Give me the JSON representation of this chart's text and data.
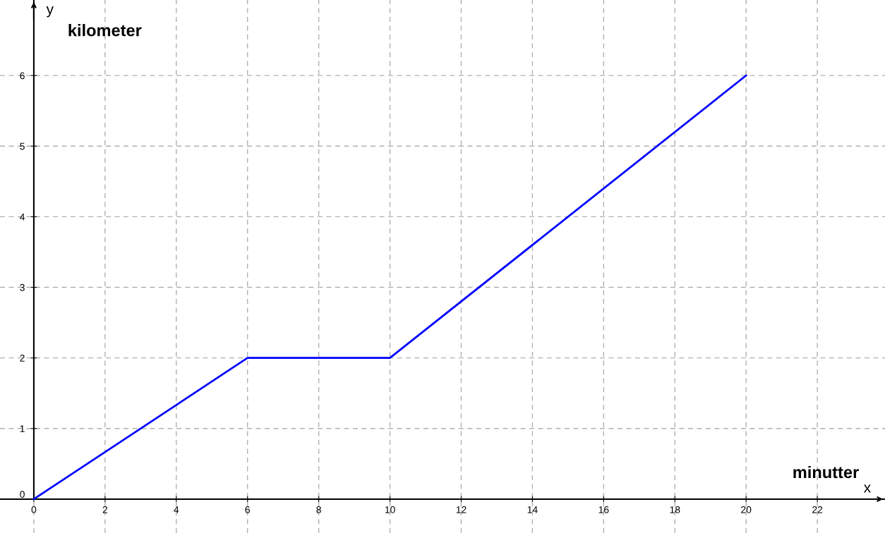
{
  "chart_data": {
    "type": "line",
    "xlabel": "minutter",
    "ylabel": "kilometer",
    "annotations": [
      "x",
      "y"
    ],
    "x": [
      0,
      6,
      10,
      20
    ],
    "series": [
      {
        "color": "#0000ff",
        "values": [
          0,
          2,
          2,
          6
        ]
      }
    ],
    "xlim": [
      -0.95,
      23.9
    ],
    "ylim": [
      -0.48,
      7.07
    ],
    "xticks": [
      0,
      2,
      4,
      6,
      8,
      10,
      12,
      14,
      16,
      18,
      20,
      22
    ],
    "yticks": [
      0,
      1,
      2,
      3,
      4,
      5,
      6
    ],
    "grid": true,
    "marker": "none",
    "line_style": "solid"
  }
}
